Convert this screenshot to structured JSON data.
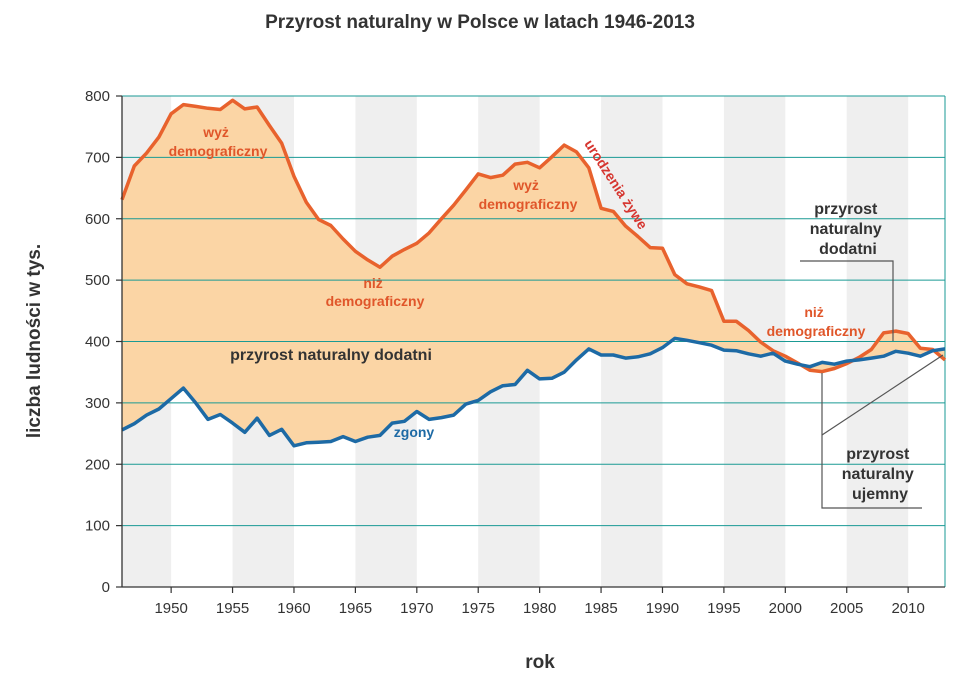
{
  "chart_data": {
    "type": "area",
    "title": "Przyrost naturalny w Polsce w latach 1946-2013",
    "xlabel": "rok",
    "ylabel": "liczba ludności w tys.",
    "xlim": [
      1946,
      2013
    ],
    "ylim": [
      0,
      800
    ],
    "x_ticks": [
      1950,
      1955,
      1960,
      1965,
      1970,
      1975,
      1980,
      1985,
      1990,
      1995,
      2000,
      2005,
      2010
    ],
    "y_ticks": [
      0,
      100,
      200,
      300,
      400,
      500,
      600,
      700,
      800
    ],
    "grid": true,
    "colors": {
      "births": "#e8622d",
      "deaths": "#1d6aa5",
      "fill": "#fbd5a5",
      "band": "#efefef",
      "grid": "#1a9a94"
    },
    "series": [
      {
        "name": "urodzenia żywe",
        "x": [
          1946,
          1947,
          1948,
          1949,
          1950,
          1951,
          1952,
          1953,
          1954,
          1955,
          1956,
          1957,
          1958,
          1959,
          1960,
          1961,
          1962,
          1963,
          1964,
          1965,
          1966,
          1967,
          1968,
          1969,
          1970,
          1971,
          1972,
          1973,
          1974,
          1975,
          1976,
          1977,
          1978,
          1979,
          1980,
          1981,
          1982,
          1983,
          1984,
          1985,
          1986,
          1987,
          1988,
          1989,
          1990,
          1991,
          1992,
          1993,
          1994,
          1995,
          1996,
          1997,
          1998,
          1999,
          2000,
          2001,
          2002,
          2003,
          2004,
          2005,
          2006,
          2007,
          2008,
          2009,
          2010,
          2011,
          2012,
          2013
        ],
        "values": [
          631,
          686,
          707,
          733,
          771,
          786,
          783,
          780,
          778,
          793,
          779,
          782,
          752,
          723,
          669,
          627,
          599,
          589,
          567,
          547,
          533,
          521,
          539,
          550,
          560,
          577,
          600,
          622,
          647,
          673,
          667,
          671,
          689,
          692,
          683,
          701,
          720,
          709,
          683,
          617,
          612,
          588,
          571,
          553,
          552,
          509,
          494,
          489,
          483,
          433,
          433,
          418,
          399,
          385,
          376,
          365,
          353,
          351,
          356,
          364,
          374,
          387,
          414,
          417,
          413,
          389,
          387,
          370
        ]
      },
      {
        "name": "zgony",
        "x": [
          1946,
          1947,
          1948,
          1949,
          1950,
          1951,
          1952,
          1953,
          1954,
          1955,
          1956,
          1957,
          1958,
          1959,
          1960,
          1961,
          1962,
          1963,
          1964,
          1965,
          1966,
          1967,
          1968,
          1969,
          1970,
          1971,
          1972,
          1973,
          1974,
          1975,
          1976,
          1977,
          1978,
          1979,
          1980,
          1981,
          1982,
          1983,
          1984,
          1985,
          1986,
          1987,
          1988,
          1989,
          1990,
          1991,
          1992,
          1993,
          1994,
          1995,
          1996,
          1997,
          1998,
          1999,
          2000,
          2001,
          2002,
          2003,
          2004,
          2005,
          2006,
          2007,
          2008,
          2009,
          2010,
          2011,
          2012,
          2013
        ],
        "values": [
          256,
          266,
          280,
          290,
          307,
          324,
          300,
          273,
          281,
          267,
          252,
          275,
          247,
          257,
          230,
          235,
          236,
          237,
          245,
          237,
          244,
          247,
          267,
          270,
          286,
          273,
          276,
          280,
          298,
          304,
          318,
          328,
          330,
          353,
          339,
          340,
          350,
          370,
          388,
          378,
          378,
          373,
          375,
          380,
          390,
          405,
          402,
          398,
          394,
          386,
          385,
          380,
          376,
          381,
          368,
          363,
          359,
          366,
          363,
          368,
          370,
          373,
          376,
          384,
          381,
          376,
          385,
          388
        ]
      }
    ],
    "annotations": {
      "wyz1": [
        "wyż",
        "demograficzny"
      ],
      "wyz2": [
        "wyż",
        "demograficzny"
      ],
      "niz1": [
        "niż",
        "demograficzny"
      ],
      "niz2": [
        "niż",
        "demograficzny"
      ],
      "przyrost_main": "przyrost naturalny dodatni",
      "zgony": "zgony",
      "urodzenia": "urodzenia żywe",
      "dodatni_box": [
        "przyrost",
        "naturalny",
        "dodatni"
      ],
      "ujemny_box": [
        "przyrost",
        "naturalny",
        "ujemny"
      ]
    }
  }
}
